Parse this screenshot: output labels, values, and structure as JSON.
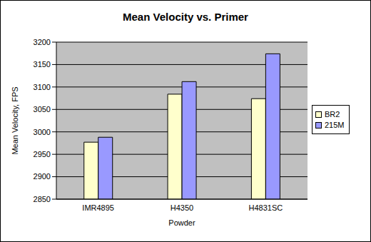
{
  "chart_data": {
    "type": "bar",
    "title": "Mean Velocity vs. Primer",
    "x_label": "Powder",
    "y_label": "Mean Velocity, FPS",
    "categories": [
      "IMR4895",
      "H4350",
      "H4831SC"
    ],
    "series": [
      {
        "name": "BR2",
        "color": "#ffffcc",
        "values": [
          2977,
          3084,
          3074
        ]
      },
      {
        "name": "215M",
        "color": "#9999ff",
        "values": [
          2988,
          3112,
          3174
        ]
      }
    ],
    "ylim": [
      2850,
      3200
    ],
    "yticks": [
      2850,
      2900,
      2950,
      3000,
      3050,
      3100,
      3150,
      3200
    ],
    "grid": true,
    "legend": "right"
  }
}
